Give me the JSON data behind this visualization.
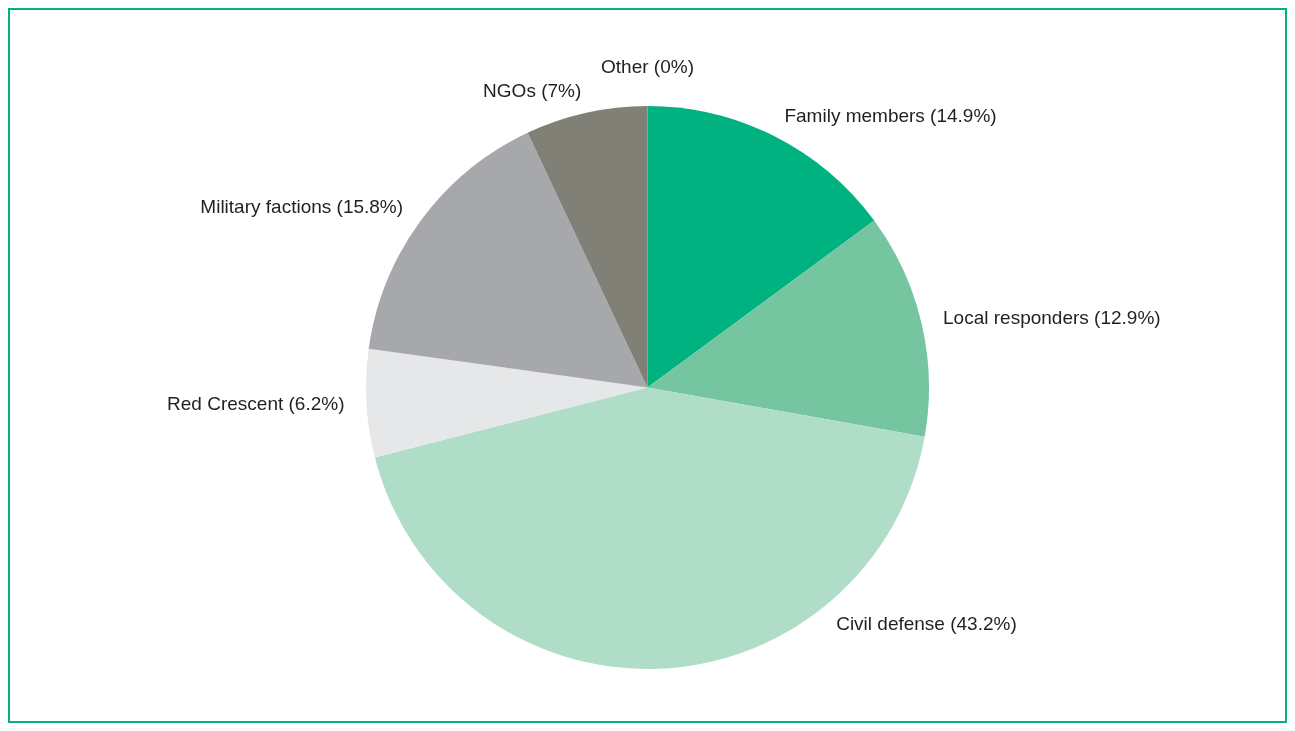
{
  "chart_data": {
    "type": "pie",
    "categories": [
      "Family members (14.9%)",
      "Local responders (12.9%)",
      "Civil defense (43.2%)",
      "Red Crescent (6.2%)",
      "Military factions (15.8%)",
      "NGOs (7%)",
      "Other (0%)"
    ],
    "values": [
      14.9,
      12.9,
      43.2,
      6.2,
      15.8,
      7,
      0
    ],
    "colors": [
      "#00b27f",
      "#76c5a1",
      "#b0ddc7",
      "#e6e7e8",
      "#a7a8ab",
      "#808076",
      "#c9c9c9"
    ],
    "legend": false
  }
}
